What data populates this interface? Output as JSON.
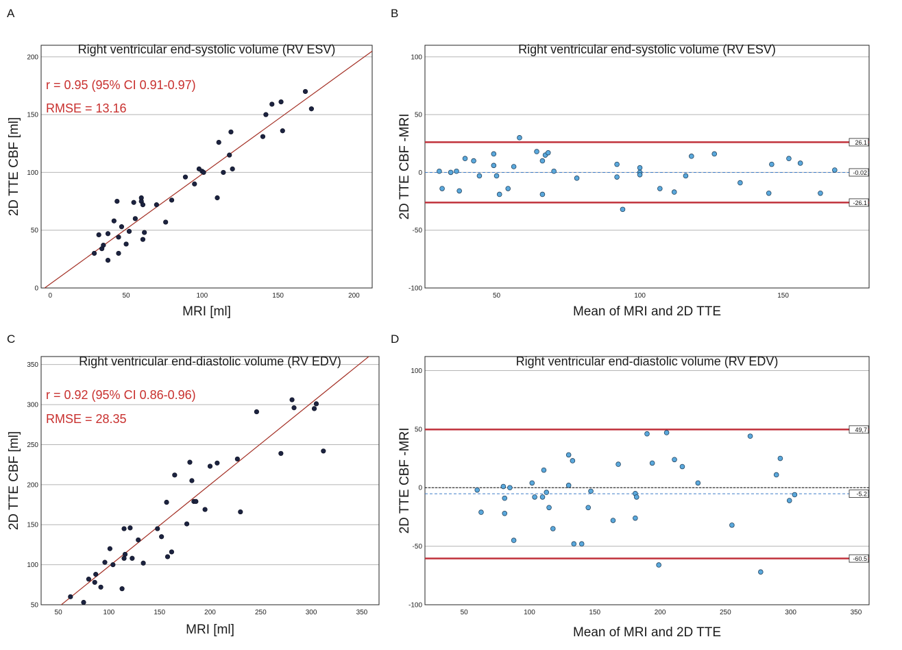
{
  "chart_data": [
    {
      "panel": "A",
      "type": "scatter",
      "title": "Right ventricular end-systolic volume (RV ESV)",
      "xlabel": "MRI [ml]",
      "ylabel": "2D TTE CBF [ml]",
      "xlim": [
        -6,
        212
      ],
      "ylim": [
        0,
        210
      ],
      "xticks": [
        0,
        50,
        100,
        150,
        200
      ],
      "yticks": [
        0,
        50,
        100,
        150,
        200
      ],
      "stats": [
        "r = 0.95 (95% CI 0.91-0.97)",
        "RMSE = 13.16"
      ],
      "fit_line": {
        "slope": 0.95,
        "intercept": 3.5
      },
      "points": [
        [
          29,
          30
        ],
        [
          32,
          46
        ],
        [
          34,
          34
        ],
        [
          35,
          37
        ],
        [
          38,
          47
        ],
        [
          38,
          24
        ],
        [
          42,
          58
        ],
        [
          44,
          75
        ],
        [
          45,
          30
        ],
        [
          45,
          44
        ],
        [
          47,
          53
        ],
        [
          50,
          38
        ],
        [
          52,
          49
        ],
        [
          55,
          74
        ],
        [
          56,
          60
        ],
        [
          60,
          78
        ],
        [
          60,
          75
        ],
        [
          61,
          42
        ],
        [
          61,
          72
        ],
        [
          62,
          48
        ],
        [
          70,
          72
        ],
        [
          76,
          57
        ],
        [
          80,
          76
        ],
        [
          89,
          96
        ],
        [
          95,
          90
        ],
        [
          98,
          103
        ],
        [
          100,
          101
        ],
        [
          101,
          100
        ],
        [
          110,
          78
        ],
        [
          111,
          126
        ],
        [
          114,
          100
        ],
        [
          118,
          115
        ],
        [
          119,
          135
        ],
        [
          120,
          103
        ],
        [
          140,
          131
        ],
        [
          142,
          150
        ],
        [
          146,
          159
        ],
        [
          152,
          161
        ],
        [
          153,
          136
        ],
        [
          168,
          170
        ],
        [
          172,
          155
        ]
      ]
    },
    {
      "panel": "B",
      "type": "scatter",
      "title": "Right ventricular end-systolic volume (RV ESV)",
      "xlabel": "Mean of MRI and 2D TTE",
      "ylabel": "2D TTE CBF -MRI",
      "xlim": [
        25,
        180
      ],
      "ylim": [
        -100,
        110
      ],
      "xticks": [
        50,
        100,
        150
      ],
      "yticks": [
        -100,
        -50,
        0,
        50,
        100
      ],
      "reference_lines": [
        {
          "role": "upper-loa",
          "value": 26.1,
          "label": "26.1"
        },
        {
          "role": "mean-difference",
          "value": -0.02,
          "label": "-0.02"
        },
        {
          "role": "lower-loa",
          "value": -26.1,
          "label": "-26.1"
        }
      ],
      "points": [
        [
          30,
          1
        ],
        [
          31,
          -14
        ],
        [
          34,
          0
        ],
        [
          36,
          1
        ],
        [
          37,
          -16
        ],
        [
          39,
          12
        ],
        [
          42,
          10
        ],
        [
          44,
          -3
        ],
        [
          49,
          6
        ],
        [
          49,
          16
        ],
        [
          50,
          -3
        ],
        [
          51,
          -19
        ],
        [
          54,
          -14
        ],
        [
          56,
          5
        ],
        [
          58,
          30
        ],
        [
          64,
          18
        ],
        [
          66,
          -19
        ],
        [
          66,
          10
        ],
        [
          67,
          15
        ],
        [
          68,
          17
        ],
        [
          70,
          1
        ],
        [
          78,
          -5
        ],
        [
          92,
          7
        ],
        [
          92,
          -4
        ],
        [
          94,
          -32
        ],
        [
          100,
          4
        ],
        [
          100,
          0
        ],
        [
          100,
          -2
        ],
        [
          107,
          -14
        ],
        [
          112,
          -17
        ],
        [
          116,
          -3
        ],
        [
          118,
          14
        ],
        [
          126,
          16
        ],
        [
          135,
          -9
        ],
        [
          145,
          -18
        ],
        [
          146,
          7
        ],
        [
          152,
          12
        ],
        [
          156,
          8
        ],
        [
          163,
          -18
        ],
        [
          168,
          2
        ]
      ]
    },
    {
      "panel": "C",
      "type": "scatter",
      "title": "Right ventricular end-diastolic volume (RV EDV)",
      "xlabel": "MRI [ml]",
      "ylabel": "2D TTE CBF [ml]",
      "xlim": [
        33,
        367
      ],
      "ylim": [
        50,
        360
      ],
      "xticks": [
        50,
        100,
        150,
        200,
        250,
        300,
        350
      ],
      "yticks": [
        50,
        100,
        150,
        200,
        250,
        300,
        350
      ],
      "stats": [
        "r = 0.92 (95% CI 0.86-0.96)",
        "RMSE = 28.35"
      ],
      "fit_line": {
        "slope": 1.02,
        "intercept": -4
      },
      "points": [
        [
          62,
          60
        ],
        [
          75,
          53
        ],
        [
          80,
          82
        ],
        [
          86,
          78
        ],
        [
          87,
          88
        ],
        [
          92,
          72
        ],
        [
          96,
          103
        ],
        [
          101,
          120
        ],
        [
          104,
          100
        ],
        [
          113,
          70
        ],
        [
          115,
          108
        ],
        [
          115,
          145
        ],
        [
          116,
          113
        ],
        [
          121,
          146
        ],
        [
          123,
          108
        ],
        [
          129,
          131
        ],
        [
          134,
          102
        ],
        [
          148,
          145
        ],
        [
          152,
          135
        ],
        [
          157,
          178
        ],
        [
          158,
          110
        ],
        [
          162,
          116
        ],
        [
          165,
          212
        ],
        [
          177,
          151
        ],
        [
          180,
          228
        ],
        [
          182,
          205
        ],
        [
          184,
          179
        ],
        [
          186,
          179
        ],
        [
          195,
          169
        ],
        [
          200,
          223
        ],
        [
          207,
          227
        ],
        [
          227,
          232
        ],
        [
          230,
          166
        ],
        [
          246,
          291
        ],
        [
          270,
          239
        ],
        [
          281,
          306
        ],
        [
          283,
          296
        ],
        [
          303,
          295
        ],
        [
          305,
          301
        ],
        [
          312,
          242
        ]
      ]
    },
    {
      "panel": "D",
      "type": "scatter",
      "title": "Right ventricular end-diastolic volume (RV EDV)",
      "xlabel": "Mean of MRI and 2D TTE",
      "ylabel": "2D TTE CBF -MRI",
      "xlim": [
        20,
        360
      ],
      "ylim": [
        -100,
        112
      ],
      "xticks": [
        50,
        100,
        150,
        200,
        250,
        300,
        350
      ],
      "yticks": [
        -100,
        -50,
        0,
        50,
        100
      ],
      "reference_lines": [
        {
          "role": "upper-loa",
          "value": 49.7,
          "label": "49,7"
        },
        {
          "role": "zero",
          "value": 0,
          "label": ""
        },
        {
          "role": "mean-difference",
          "value": -5.2,
          "label": "-5.2"
        },
        {
          "role": "lower-loa",
          "value": -60.5,
          "label": "-60.5"
        }
      ],
      "points": [
        [
          60,
          -2
        ],
        [
          63,
          -21
        ],
        [
          80,
          1
        ],
        [
          81,
          -9
        ],
        [
          81,
          -22
        ],
        [
          85,
          0
        ],
        [
          88,
          -45
        ],
        [
          102,
          4
        ],
        [
          104,
          -8
        ],
        [
          110,
          -8
        ],
        [
          111,
          15
        ],
        [
          113,
          -4
        ],
        [
          115,
          -17
        ],
        [
          118,
          -35
        ],
        [
          130,
          28
        ],
        [
          130,
          2
        ],
        [
          133,
          23
        ],
        [
          134,
          -48
        ],
        [
          140,
          -48
        ],
        [
          145,
          -17
        ],
        [
          147,
          -3
        ],
        [
          164,
          -28
        ],
        [
          168,
          20
        ],
        [
          181,
          -5
        ],
        [
          182,
          -8
        ],
        [
          181,
          -26
        ],
        [
          190,
          46
        ],
        [
          194,
          21
        ],
        [
          199,
          -66
        ],
        [
          205,
          47
        ],
        [
          211,
          24
        ],
        [
          217,
          18
        ],
        [
          229,
          4
        ],
        [
          255,
          -32
        ],
        [
          269,
          44
        ],
        [
          277,
          -72
        ],
        [
          289,
          11
        ],
        [
          292,
          25
        ],
        [
          299,
          -11
        ],
        [
          303,
          -6
        ]
      ]
    }
  ]
}
